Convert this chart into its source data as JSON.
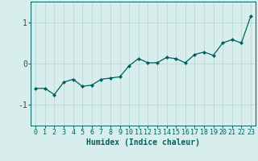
{
  "x": [
    0,
    1,
    2,
    3,
    4,
    5,
    6,
    7,
    8,
    9,
    10,
    11,
    12,
    13,
    14,
    15,
    16,
    17,
    18,
    19,
    20,
    21,
    22,
    23
  ],
  "y": [
    -0.6,
    -0.6,
    -0.75,
    -0.45,
    -0.38,
    -0.55,
    -0.52,
    -0.38,
    -0.35,
    -0.32,
    -0.05,
    0.12,
    0.02,
    0.02,
    0.15,
    0.12,
    0.02,
    0.22,
    0.28,
    0.2,
    0.5,
    0.58,
    0.5,
    1.15
  ],
  "line_color": "#006060",
  "marker": "D",
  "markersize": 2,
  "linewidth": 0.9,
  "xlabel": "Humidex (Indice chaleur)",
  "xlabel_fontsize": 7,
  "xlim": [
    -0.5,
    23.5
  ],
  "ylim": [
    -1.5,
    1.5
  ],
  "yticks": [
    -1,
    0,
    1
  ],
  "xticks": [
    0,
    1,
    2,
    3,
    4,
    5,
    6,
    7,
    8,
    9,
    10,
    11,
    12,
    13,
    14,
    15,
    16,
    17,
    18,
    19,
    20,
    21,
    22,
    23
  ],
  "grid_color": "#b8dada",
  "background_color": "#d8eeed",
  "tick_color": "#006060",
  "tick_fontsize": 6,
  "xlabel_fontweight": "bold"
}
